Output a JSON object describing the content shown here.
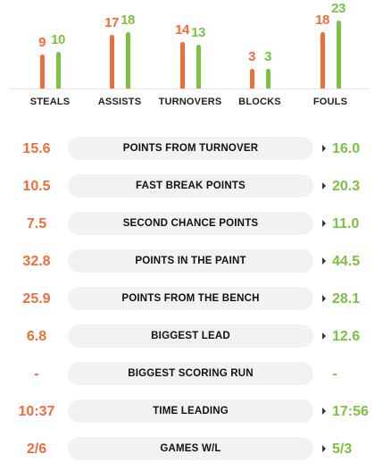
{
  "chart_data": {
    "type": "bar",
    "categories": [
      "STEALS",
      "ASSISTS",
      "TURNOVERS",
      "BLOCKS",
      "FOULS"
    ],
    "series": [
      {
        "values": [
          9,
          17,
          14,
          3,
          18
        ],
        "color": "#f26b3a"
      },
      {
        "values": [
          10,
          18,
          13,
          3,
          23
        ],
        "color": "#7dc142"
      }
    ]
  },
  "stats": [
    {
      "label": "POINTS FROM TURNOVER",
      "home": "15.6",
      "away": "16.0",
      "arrow": true
    },
    {
      "label": "FAST BREAK POINTS",
      "home": "10.5",
      "away": "20.3",
      "arrow": true
    },
    {
      "label": "SECOND CHANCE POINTS",
      "home": "7.5",
      "away": "11.0",
      "arrow": true
    },
    {
      "label": "POINTS IN THE PAINT",
      "home": "32.8",
      "away": "44.5",
      "arrow": true
    },
    {
      "label": "POINTS FROM THE BENCH",
      "home": "25.9",
      "away": "28.1",
      "arrow": true
    },
    {
      "label": "BIGGEST LEAD",
      "home": "6.8",
      "away": "12.6",
      "arrow": true
    },
    {
      "label": "BIGGEST SCORING RUN",
      "home": "-",
      "away": "-",
      "arrow": false
    },
    {
      "label": "TIME LEADING",
      "home": "10:37",
      "away": "17:56",
      "arrow": true
    },
    {
      "label": "GAMES W/L",
      "home": "2/6",
      "away": "5/3",
      "arrow": true
    }
  ],
  "colors": {
    "home": "#f26b3a",
    "away": "#7dc142",
    "pill": "#f2f2f2"
  }
}
